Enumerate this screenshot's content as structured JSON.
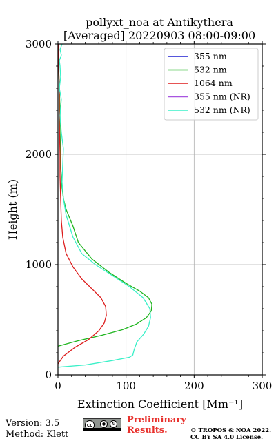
{
  "chart_data": {
    "type": "line",
    "title_line1": "pollyxt_noa at Antikythera",
    "title_line2": "[Averaged] 20220903 08:00-09:00",
    "xlabel": "Extinction Coefficient [Mm⁻¹]",
    "ylabel": "Height (m)",
    "xlim": [
      0,
      300
    ],
    "ylim": [
      0,
      3000
    ],
    "xticks": [
      0,
      100,
      200,
      300
    ],
    "yticks": [
      0,
      1000,
      2000,
      3000
    ],
    "grid": true,
    "legend_position": "top-right",
    "series": [
      {
        "name": "355 nm",
        "color": "#1f1fd0",
        "x": [],
        "y": []
      },
      {
        "name": "532 nm",
        "color": "#1fb51f",
        "x": [
          0,
          30,
          65,
          95,
          115,
          130,
          137,
          138,
          133,
          120,
          100,
          75,
          50,
          30,
          22,
          12,
          8,
          6,
          5,
          4,
          4,
          3,
          3,
          2,
          1,
          1
        ],
        "y": [
          260,
          310,
          360,
          410,
          460,
          520,
          580,
          640,
          700,
          760,
          830,
          930,
          1050,
          1200,
          1350,
          1500,
          1600,
          1700,
          1800,
          1900,
          2000,
          2200,
          2400,
          2600,
          2800,
          3000
        ]
      },
      {
        "name": "1064 nm",
        "color": "#dd1c1c",
        "x": [
          0,
          8,
          25,
          45,
          60,
          68,
          71,
          70,
          63,
          50,
          35,
          22,
          12,
          7,
          5,
          4,
          3,
          3,
          2,
          2,
          1,
          1
        ],
        "y": [
          100,
          170,
          250,
          320,
          400,
          470,
          540,
          620,
          700,
          780,
          870,
          980,
          1100,
          1250,
          1400,
          1600,
          1800,
          2000,
          2300,
          2600,
          2800,
          3000
        ]
      },
      {
        "name": "355 nm (NR)",
        "color": "#a855e0",
        "x": [],
        "y": []
      },
      {
        "name": "532 nm (NR)",
        "color": "#3af0c8",
        "x": [
          0,
          40,
          80,
          105,
          110,
          112,
          116,
          126,
          133,
          136,
          135,
          125,
          105,
          80,
          55,
          35,
          22,
          12,
          8,
          6,
          7,
          8,
          5,
          3,
          5,
          2,
          4,
          3,
          2,
          5,
          3,
          6
        ],
        "y": [
          70,
          90,
          130,
          160,
          180,
          230,
          300,
          370,
          440,
          520,
          600,
          700,
          800,
          900,
          1000,
          1100,
          1250,
          1450,
          1600,
          1750,
          1900,
          2050,
          2200,
          2350,
          2500,
          2600,
          2700,
          2800,
          2850,
          2900,
          2950,
          3000
        ]
      }
    ]
  },
  "footer": {
    "version": "Version: 3.5",
    "method": "Method: Klett",
    "preliminary_line1": "Preliminary",
    "preliminary_line2": "Results.",
    "preliminary_color": "#e8312d",
    "copyright_line1": "© TROPOS & NOA 2022.",
    "copyright_line2": "CC BY SA 4.0 License.",
    "license_badge_icon": "cc-by-sa-badge"
  }
}
